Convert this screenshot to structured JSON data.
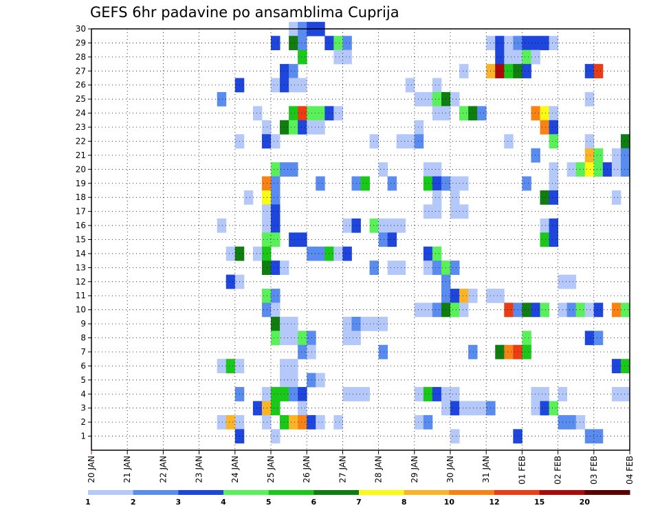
{
  "chart_data": {
    "type": "heatmap",
    "title": "GEFS 6hr padavine po ansamblima Cuprija",
    "x_tick_labels": [
      "20 JAN",
      "21 JAN",
      "22 JAN",
      "23 JAN",
      "24 JAN",
      "25 JAN",
      "26 JAN",
      "27 JAN",
      "28 JAN",
      "29 JAN",
      "30 JAN",
      "31 JAN",
      "01 FEB",
      "02 FEB",
      "03 FEB",
      "04 FEB"
    ],
    "y_tick_labels": [
      "1",
      "2",
      "3",
      "4",
      "5",
      "6",
      "7",
      "8",
      "9",
      "10",
      "11",
      "12",
      "13",
      "14",
      "15",
      "16",
      "17",
      "18",
      "19",
      "20",
      "21",
      "22",
      "23",
      "24",
      "25",
      "26",
      "27",
      "28",
      "29",
      "30"
    ],
    "x_range_steps": [
      0,
      60
    ],
    "y_range_members": [
      0,
      30
    ],
    "grid": "dotted",
    "colorbar": {
      "labels": [
        "1",
        "2",
        "3",
        "4",
        "5",
        "6",
        "7",
        "8",
        "10",
        "12",
        "15",
        "20"
      ],
      "colors": [
        "#b4c8fa",
        "#5a8cf0",
        "#1e46dc",
        "#5af05a",
        "#19c819",
        "#0f7d0f",
        "#fafa14",
        "#fab428",
        "#fa8214",
        "#eb3c14",
        "#aa0a0a",
        "#5a0000"
      ]
    },
    "cells": [
      [
        23,
        30,
        1
      ],
      [
        24,
        30,
        2
      ],
      [
        25,
        30,
        3
      ],
      [
        26,
        30,
        3
      ],
      [
        21,
        29,
        3
      ],
      [
        23,
        29,
        6
      ],
      [
        24,
        29,
        2
      ],
      [
        27,
        29,
        3
      ],
      [
        28,
        29,
        4
      ],
      [
        29,
        29,
        2
      ],
      [
        45,
        29,
        1
      ],
      [
        46,
        29,
        3
      ],
      [
        47,
        29,
        1
      ],
      [
        48,
        29,
        2
      ],
      [
        49,
        29,
        3
      ],
      [
        50,
        29,
        3
      ],
      [
        51,
        29,
        3
      ],
      [
        52,
        29,
        1
      ],
      [
        24,
        28,
        5
      ],
      [
        28,
        28,
        1
      ],
      [
        29,
        28,
        1
      ],
      [
        46,
        28,
        3
      ],
      [
        47,
        28,
        1
      ],
      [
        48,
        28,
        1
      ],
      [
        49,
        28,
        4
      ],
      [
        50,
        28,
        1
      ],
      [
        22,
        27,
        3
      ],
      [
        23,
        27,
        2
      ],
      [
        42,
        27,
        1
      ],
      [
        45,
        27,
        8
      ],
      [
        46,
        27,
        11
      ],
      [
        47,
        27,
        5
      ],
      [
        48,
        27,
        6
      ],
      [
        49,
        27,
        3
      ],
      [
        56,
        27,
        3
      ],
      [
        57,
        27,
        10
      ],
      [
        17,
        26,
        3
      ],
      [
        21,
        26,
        1
      ],
      [
        22,
        26,
        3
      ],
      [
        23,
        26,
        1
      ],
      [
        24,
        26,
        1
      ],
      [
        36,
        26,
        1
      ],
      [
        39,
        26,
        1
      ],
      [
        15,
        25,
        2
      ],
      [
        37,
        25,
        1
      ],
      [
        38,
        25,
        1
      ],
      [
        39,
        25,
        4
      ],
      [
        40,
        25,
        6
      ],
      [
        41,
        25,
        1
      ],
      [
        56,
        25,
        1
      ],
      [
        19,
        24,
        1
      ],
      [
        23,
        24,
        5
      ],
      [
        24,
        24,
        10
      ],
      [
        25,
        24,
        4
      ],
      [
        26,
        24,
        4
      ],
      [
        27,
        24,
        3
      ],
      [
        28,
        24,
        1
      ],
      [
        39,
        24,
        1
      ],
      [
        40,
        24,
        1
      ],
      [
        42,
        24,
        4
      ],
      [
        43,
        24,
        6
      ],
      [
        44,
        24,
        2
      ],
      [
        50,
        24,
        9
      ],
      [
        51,
        24,
        7
      ],
      [
        52,
        24,
        1
      ],
      [
        20,
        23,
        1
      ],
      [
        22,
        23,
        6
      ],
      [
        23,
        23,
        4
      ],
      [
        24,
        23,
        3
      ],
      [
        25,
        23,
        1
      ],
      [
        26,
        23,
        1
      ],
      [
        37,
        23,
        1
      ],
      [
        51,
        23,
        9
      ],
      [
        52,
        23,
        3
      ],
      [
        17,
        22,
        1
      ],
      [
        20,
        22,
        3
      ],
      [
        21,
        22,
        1
      ],
      [
        32,
        22,
        1
      ],
      [
        35,
        22,
        1
      ],
      [
        36,
        22,
        1
      ],
      [
        37,
        22,
        2
      ],
      [
        47,
        22,
        1
      ],
      [
        52,
        22,
        4
      ],
      [
        56,
        22,
        1
      ],
      [
        60,
        22,
        6
      ],
      [
        50,
        21,
        2
      ],
      [
        56,
        21,
        8
      ],
      [
        57,
        21,
        4
      ],
      [
        59,
        21,
        1
      ],
      [
        60,
        21,
        2
      ],
      [
        21,
        20,
        4
      ],
      [
        22,
        20,
        2
      ],
      [
        23,
        20,
        2
      ],
      [
        33,
        20,
        1
      ],
      [
        38,
        20,
        1
      ],
      [
        39,
        20,
        1
      ],
      [
        52,
        20,
        1
      ],
      [
        54,
        20,
        1
      ],
      [
        55,
        20,
        4
      ],
      [
        56,
        20,
        7
      ],
      [
        57,
        20,
        4
      ],
      [
        58,
        20,
        3
      ],
      [
        59,
        20,
        1
      ],
      [
        60,
        20,
        2
      ],
      [
        20,
        19,
        9
      ],
      [
        21,
        19,
        2
      ],
      [
        26,
        19,
        2
      ],
      [
        30,
        19,
        2
      ],
      [
        31,
        19,
        5
      ],
      [
        34,
        19,
        2
      ],
      [
        38,
        19,
        5
      ],
      [
        39,
        19,
        3
      ],
      [
        40,
        19,
        2
      ],
      [
        41,
        19,
        1
      ],
      [
        42,
        19,
        1
      ],
      [
        49,
        19,
        2
      ],
      [
        52,
        19,
        1
      ],
      [
        18,
        18,
        1
      ],
      [
        20,
        18,
        7
      ],
      [
        21,
        18,
        2
      ],
      [
        39,
        18,
        1
      ],
      [
        41,
        18,
        1
      ],
      [
        51,
        18,
        6
      ],
      [
        52,
        18,
        3
      ],
      [
        59,
        18,
        1
      ],
      [
        20,
        17,
        1
      ],
      [
        21,
        17,
        3
      ],
      [
        38,
        17,
        1
      ],
      [
        39,
        17,
        1
      ],
      [
        41,
        17,
        1
      ],
      [
        42,
        17,
        1
      ],
      [
        15,
        16,
        1
      ],
      [
        20,
        16,
        1
      ],
      [
        21,
        16,
        3
      ],
      [
        29,
        16,
        1
      ],
      [
        30,
        16,
        3
      ],
      [
        32,
        16,
        4
      ],
      [
        33,
        16,
        1
      ],
      [
        34,
        16,
        1
      ],
      [
        35,
        16,
        1
      ],
      [
        51,
        16,
        1
      ],
      [
        52,
        16,
        3
      ],
      [
        20,
        15,
        4
      ],
      [
        21,
        15,
        4
      ],
      [
        23,
        15,
        3
      ],
      [
        24,
        15,
        3
      ],
      [
        33,
        15,
        2
      ],
      [
        34,
        15,
        3
      ],
      [
        51,
        15,
        5
      ],
      [
        52,
        15,
        3
      ],
      [
        16,
        14,
        1
      ],
      [
        17,
        14,
        6
      ],
      [
        19,
        14,
        1
      ],
      [
        20,
        14,
        5
      ],
      [
        25,
        14,
        2
      ],
      [
        26,
        14,
        2
      ],
      [
        27,
        14,
        5
      ],
      [
        28,
        14,
        1
      ],
      [
        29,
        14,
        3
      ],
      [
        38,
        14,
        3
      ],
      [
        39,
        14,
        4
      ],
      [
        20,
        13,
        6
      ],
      [
        21,
        13,
        3
      ],
      [
        22,
        13,
        1
      ],
      [
        32,
        13,
        2
      ],
      [
        34,
        13,
        1
      ],
      [
        35,
        13,
        1
      ],
      [
        38,
        13,
        1
      ],
      [
        39,
        13,
        2
      ],
      [
        40,
        13,
        4
      ],
      [
        41,
        13,
        2
      ],
      [
        16,
        12,
        3
      ],
      [
        17,
        12,
        1
      ],
      [
        40,
        12,
        2
      ],
      [
        53,
        12,
        1
      ],
      [
        54,
        12,
        1
      ],
      [
        20,
        11,
        4
      ],
      [
        21,
        11,
        2
      ],
      [
        40,
        11,
        2
      ],
      [
        41,
        11,
        3
      ],
      [
        42,
        11,
        8
      ],
      [
        43,
        11,
        1
      ],
      [
        45,
        11,
        1
      ],
      [
        46,
        11,
        1
      ],
      [
        20,
        10,
        2
      ],
      [
        21,
        10,
        1
      ],
      [
        37,
        10,
        1
      ],
      [
        38,
        10,
        1
      ],
      [
        39,
        10,
        2
      ],
      [
        40,
        10,
        6
      ],
      [
        41,
        10,
        4
      ],
      [
        42,
        10,
        1
      ],
      [
        47,
        10,
        10
      ],
      [
        48,
        10,
        2
      ],
      [
        49,
        10,
        6
      ],
      [
        50,
        10,
        3
      ],
      [
        51,
        10,
        4
      ],
      [
        53,
        10,
        1
      ],
      [
        54,
        10,
        2
      ],
      [
        55,
        10,
        4
      ],
      [
        56,
        10,
        1
      ],
      [
        57,
        10,
        3
      ],
      [
        59,
        10,
        9
      ],
      [
        60,
        10,
        4
      ],
      [
        21,
        9,
        6
      ],
      [
        22,
        9,
        1
      ],
      [
        23,
        9,
        1
      ],
      [
        29,
        9,
        1
      ],
      [
        30,
        9,
        2
      ],
      [
        31,
        9,
        1
      ],
      [
        32,
        9,
        1
      ],
      [
        33,
        9,
        1
      ],
      [
        21,
        8,
        4
      ],
      [
        22,
        8,
        1
      ],
      [
        23,
        8,
        1
      ],
      [
        24,
        8,
        4
      ],
      [
        25,
        8,
        2
      ],
      [
        29,
        8,
        1
      ],
      [
        30,
        8,
        1
      ],
      [
        49,
        8,
        4
      ],
      [
        56,
        8,
        3
      ],
      [
        57,
        8,
        2
      ],
      [
        24,
        7,
        2
      ],
      [
        25,
        7,
        1
      ],
      [
        33,
        7,
        2
      ],
      [
        43,
        7,
        2
      ],
      [
        46,
        7,
        6
      ],
      [
        47,
        7,
        9
      ],
      [
        48,
        7,
        10
      ],
      [
        49,
        7,
        5
      ],
      [
        15,
        6,
        1
      ],
      [
        16,
        6,
        5
      ],
      [
        17,
        6,
        1
      ],
      [
        22,
        6,
        1
      ],
      [
        23,
        6,
        1
      ],
      [
        59,
        6,
        3
      ],
      [
        60,
        6,
        5
      ],
      [
        22,
        5,
        1
      ],
      [
        23,
        5,
        1
      ],
      [
        25,
        5,
        2
      ],
      [
        26,
        5,
        1
      ],
      [
        17,
        4,
        2
      ],
      [
        20,
        4,
        1
      ],
      [
        21,
        4,
        5
      ],
      [
        22,
        4,
        5
      ],
      [
        23,
        4,
        2
      ],
      [
        24,
        4,
        3
      ],
      [
        29,
        4,
        1
      ],
      [
        30,
        4,
        1
      ],
      [
        31,
        4,
        1
      ],
      [
        37,
        4,
        1
      ],
      [
        38,
        4,
        5
      ],
      [
        39,
        4,
        3
      ],
      [
        40,
        4,
        1
      ],
      [
        41,
        4,
        1
      ],
      [
        50,
        4,
        1
      ],
      [
        51,
        4,
        1
      ],
      [
        53,
        4,
        1
      ],
      [
        59,
        4,
        1
      ],
      [
        60,
        4,
        1
      ],
      [
        19,
        3,
        3
      ],
      [
        20,
        3,
        8
      ],
      [
        21,
        3,
        5
      ],
      [
        24,
        3,
        1
      ],
      [
        40,
        3,
        1
      ],
      [
        41,
        3,
        3
      ],
      [
        42,
        3,
        1
      ],
      [
        43,
        3,
        1
      ],
      [
        44,
        3,
        1
      ],
      [
        45,
        3,
        2
      ],
      [
        50,
        3,
        1
      ],
      [
        51,
        3,
        3
      ],
      [
        52,
        3,
        4
      ],
      [
        15,
        2,
        1
      ],
      [
        16,
        2,
        8
      ],
      [
        17,
        2,
        1
      ],
      [
        20,
        2,
        1
      ],
      [
        22,
        2,
        5
      ],
      [
        23,
        2,
        8
      ],
      [
        24,
        2,
        9
      ],
      [
        25,
        2,
        3
      ],
      [
        26,
        2,
        1
      ],
      [
        28,
        2,
        1
      ],
      [
        37,
        2,
        1
      ],
      [
        38,
        2,
        2
      ],
      [
        53,
        2,
        2
      ],
      [
        54,
        2,
        2
      ],
      [
        55,
        2,
        1
      ],
      [
        17,
        1,
        3
      ],
      [
        21,
        1,
        1
      ],
      [
        41,
        1,
        1
      ],
      [
        48,
        1,
        3
      ],
      [
        56,
        1,
        2
      ],
      [
        57,
        1,
        2
      ]
    ]
  }
}
